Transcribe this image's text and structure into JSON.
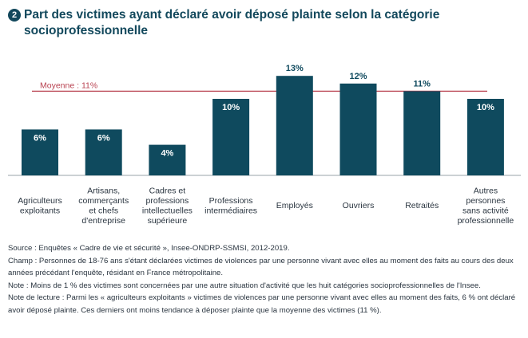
{
  "title_number": "2",
  "title": "Part des victimes ayant déclaré avoir déposé plainte selon la catégorie socioprofessionnelle",
  "colors": {
    "bar": "#0f4a5e",
    "average_line": "#b8404f",
    "title": "#12485c"
  },
  "chart_data": {
    "type": "bar",
    "categories": [
      [
        "Agriculteurs",
        "exploitants"
      ],
      [
        "Artisans,",
        "commerçants",
        "et chefs",
        "d'entreprise"
      ],
      [
        "Cadres et",
        "professions",
        "intellectuelles",
        "supérieure"
      ],
      [
        "Professions",
        "intermédiaires"
      ],
      [
        "Employés"
      ],
      [
        "Ouvriers"
      ],
      [
        "Retraités"
      ],
      [
        "Autres",
        "personnes",
        "sans activité",
        "professionnelle"
      ]
    ],
    "values": [
      6,
      6,
      4,
      10,
      13,
      12,
      11,
      10
    ],
    "value_labels": [
      "6%",
      "6%",
      "4%",
      "10%",
      "13%",
      "12%",
      "11%",
      "10%"
    ],
    "average": {
      "value": 11,
      "label": "Moyenne : 11%"
    },
    "ylim": [
      0,
      14
    ]
  },
  "notes": [
    "Source : Enquêtes « Cadre de vie et sécurité », Insee-ONDRP-SSMSI, 2012-2019.",
    "Champ : Personnes de 18-76 ans s'étant déclarées victimes de violences par une personne vivant avec elles au moment des faits au cours des deux années précédant l'enquête, résidant en France métropolitaine.",
    "Note : Moins de 1 % des victimes sont concernées par une autre situation d'activité que les huit catégories socioprofessionnelles de l'Insee.",
    "Note de lecture : Parmi les « agriculteurs exploitants » victimes de violences par une personne vivant avec elles au moment des faits, 6 % ont déclaré avoir déposé plainte. Ces derniers ont moins tendance à déposer plainte que la moyenne des victimes (11 %)."
  ]
}
